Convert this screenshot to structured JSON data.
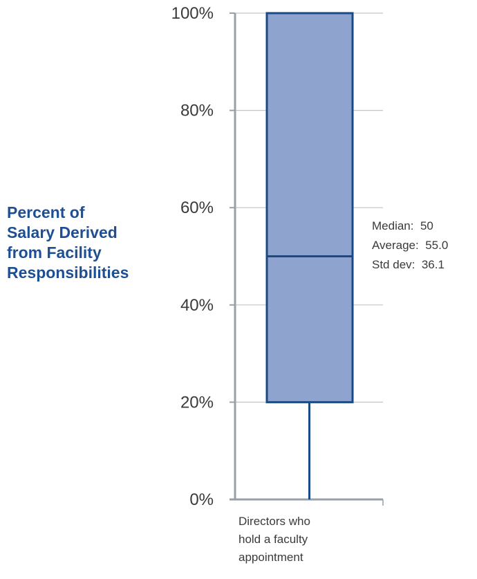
{
  "chart_data": {
    "type": "box",
    "categories": [
      "Directors who hold a faculty appointment"
    ],
    "category_lines": [
      "Directors who",
      "hold a faculty",
      "appointment"
    ],
    "ylabel_lines": [
      "Percent of",
      "Salary Derived",
      "from Facility",
      "Responsibilities"
    ],
    "ylim": [
      0,
      100
    ],
    "yticks": [
      0,
      20,
      40,
      60,
      80,
      100
    ],
    "ytick_labels": [
      "0%",
      "20%",
      "40%",
      "60%",
      "80%",
      "100%"
    ],
    "grid": true,
    "box": {
      "min": 0,
      "q1": 20,
      "median": 50,
      "q3": 100,
      "max": 100
    },
    "stats": [
      {
        "label": "Median:",
        "value": "50"
      },
      {
        "label": "Average:",
        "value": "55.0"
      },
      {
        "label": "Std dev:",
        "value": "36.1"
      }
    ]
  },
  "colors": {
    "box_fill": "#8fa3cf",
    "box_stroke": "#1a4a86",
    "axis": "#9aa0a8",
    "grid": "#c4c4c4",
    "label_blue": "#1f4f93",
    "text": "#3a3a3a"
  }
}
